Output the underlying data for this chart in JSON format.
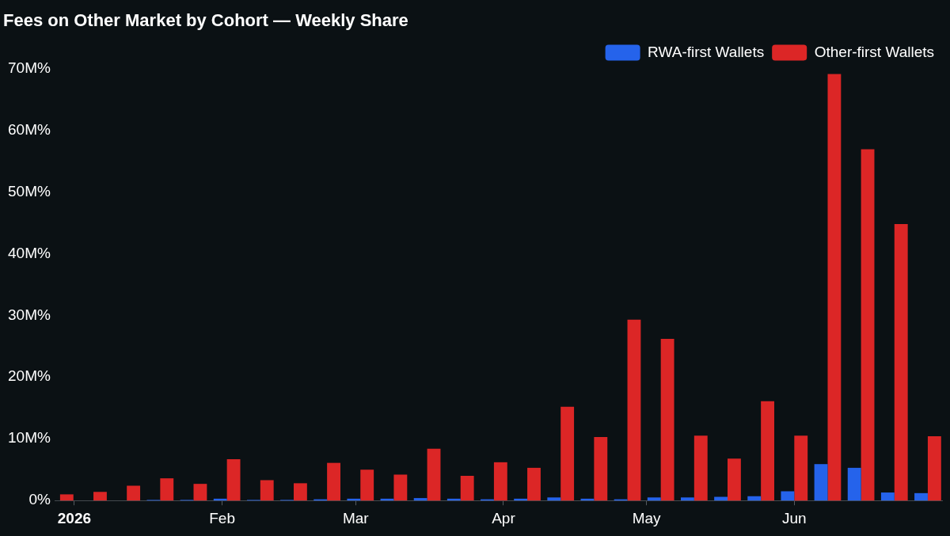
{
  "chart_data": {
    "type": "bar",
    "title": "Fees on Other Market by Cohort — Weekly Share",
    "x": [
      "2025-12-29",
      "2026-01-05",
      "2026-01-12",
      "2026-01-19",
      "2026-01-26",
      "2026-02-02",
      "2026-02-09",
      "2026-02-16",
      "2026-02-23",
      "2026-03-02",
      "2026-03-09",
      "2026-03-16",
      "2026-03-23",
      "2026-03-30",
      "2026-04-06",
      "2026-04-13",
      "2026-04-20",
      "2026-04-27",
      "2026-05-04",
      "2026-05-11",
      "2026-05-18",
      "2026-05-25",
      "2026-06-01",
      "2026-06-08",
      "2026-06-15",
      "2026-06-22",
      "2026-06-29"
    ],
    "series": [
      {
        "name": "RWA-first Wallets",
        "color": "#2563eb",
        "values": [
          0,
          0,
          0,
          0.1,
          0.1,
          0.3,
          0.1,
          0.1,
          0.2,
          0.3,
          0.3,
          0.4,
          0.3,
          0.2,
          0.3,
          0.5,
          0.3,
          0.2,
          0.5,
          0.5,
          0.6,
          0.7,
          1.5,
          5.9,
          5.3,
          1.3,
          1.2
        ]
      },
      {
        "name": "Other-first Wallets",
        "color": "#dc2626",
        "values": [
          1.0,
          1.4,
          2.4,
          3.6,
          2.7,
          6.7,
          3.3,
          2.8,
          6.1,
          5.0,
          4.2,
          8.4,
          4.0,
          6.2,
          5.3,
          15.2,
          10.3,
          29.3,
          26.2,
          10.5,
          6.8,
          16.1,
          10.5,
          69.1,
          56.9,
          44.8,
          10.4
        ]
      }
    ],
    "xlim": [
      "2025-12-28",
      "2026-07-02"
    ],
    "xticks": [
      {
        "value": "2026-01-01",
        "label": "2026"
      },
      {
        "value": "2026-02-01",
        "label": "Feb"
      },
      {
        "value": "2026-03-01",
        "label": "Mar"
      },
      {
        "value": "2026-04-01",
        "label": "Apr"
      },
      {
        "value": "2026-05-01",
        "label": "May"
      },
      {
        "value": "2026-06-01",
        "label": "Jun"
      }
    ],
    "ylim": [
      0,
      70
    ],
    "yticks": [
      {
        "value": 0,
        "label": "0%"
      },
      {
        "value": 10,
        "label": "10M%"
      },
      {
        "value": 20,
        "label": "20M%"
      },
      {
        "value": 30,
        "label": "30M%"
      },
      {
        "value": 40,
        "label": "40M%"
      },
      {
        "value": 50,
        "label": "50M%"
      },
      {
        "value": 60,
        "label": "60M%"
      },
      {
        "value": 70,
        "label": "70M%"
      }
    ],
    "grid": false,
    "legend": "top right"
  }
}
